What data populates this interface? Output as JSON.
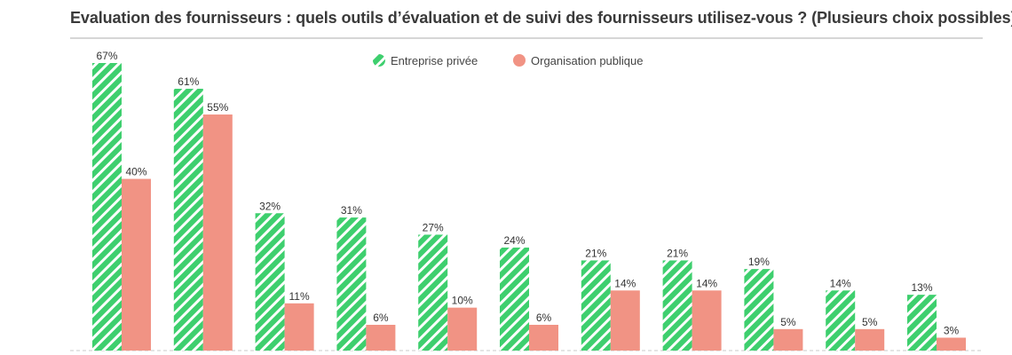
{
  "chart_data": {
    "type": "bar",
    "title": "Evaluation des fournisseurs : quels outils d’évaluation et de suivi des fournisseurs utilisez-vous ? (Plusieurs choix possibles)",
    "categories": [
      "",
      "",
      "",
      "",
      "",
      "",
      "",
      "",
      "",
      "",
      ""
    ],
    "series": [
      {
        "name": "Entreprise privée",
        "values": [
          67,
          61,
          32,
          31,
          27,
          24,
          21,
          21,
          19,
          14,
          13
        ],
        "color": "#3ecf6e",
        "pattern": "diagonal-stripes"
      },
      {
        "name": "Organisation publique",
        "values": [
          40,
          55,
          11,
          6,
          10,
          6,
          14,
          14,
          5,
          5,
          3
        ],
        "color": "#f19384"
      }
    ],
    "value_suffix": "%",
    "ylim": [
      0,
      67
    ],
    "legend_position": "top-center",
    "grid": false
  }
}
